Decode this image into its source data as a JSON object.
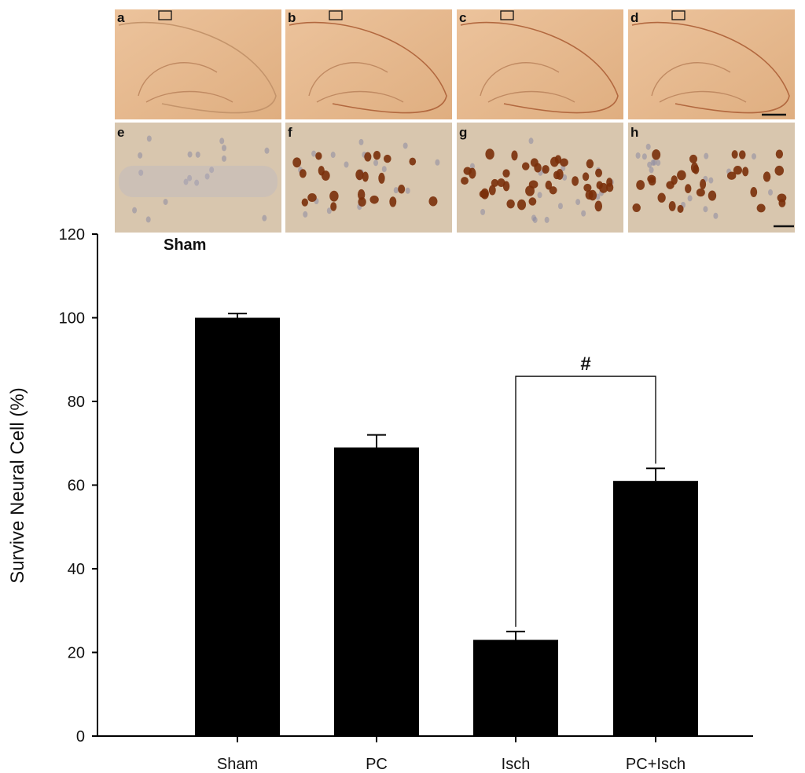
{
  "figure": {
    "micrograph_panels": {
      "overview": [
        "a",
        "b",
        "c",
        "d"
      ],
      "detail": [
        "e",
        "f",
        "g",
        "h"
      ],
      "overview_tint": "#e7b98e",
      "detail_tint": "#d8c6ae",
      "stain_color": "#7a2f0a",
      "nucleus_color": "#8d8aa3"
    },
    "inset_label": "Sham"
  },
  "chart_data": {
    "type": "bar",
    "categories": [
      "Sham",
      "PC",
      "Isch",
      "PC+Isch"
    ],
    "values": [
      100,
      69,
      23,
      61
    ],
    "errors": [
      1,
      3,
      2,
      3
    ],
    "ylabel": "Survive Neural Cell (%)",
    "xlabel": "",
    "ylim": [
      0,
      120
    ],
    "yticks": [
      0,
      20,
      40,
      60,
      80,
      100,
      120
    ],
    "bar_color": "#000000",
    "grid": false,
    "significance": {
      "from": "Isch",
      "to": "PC+Isch",
      "label": "#",
      "y": 86
    }
  }
}
